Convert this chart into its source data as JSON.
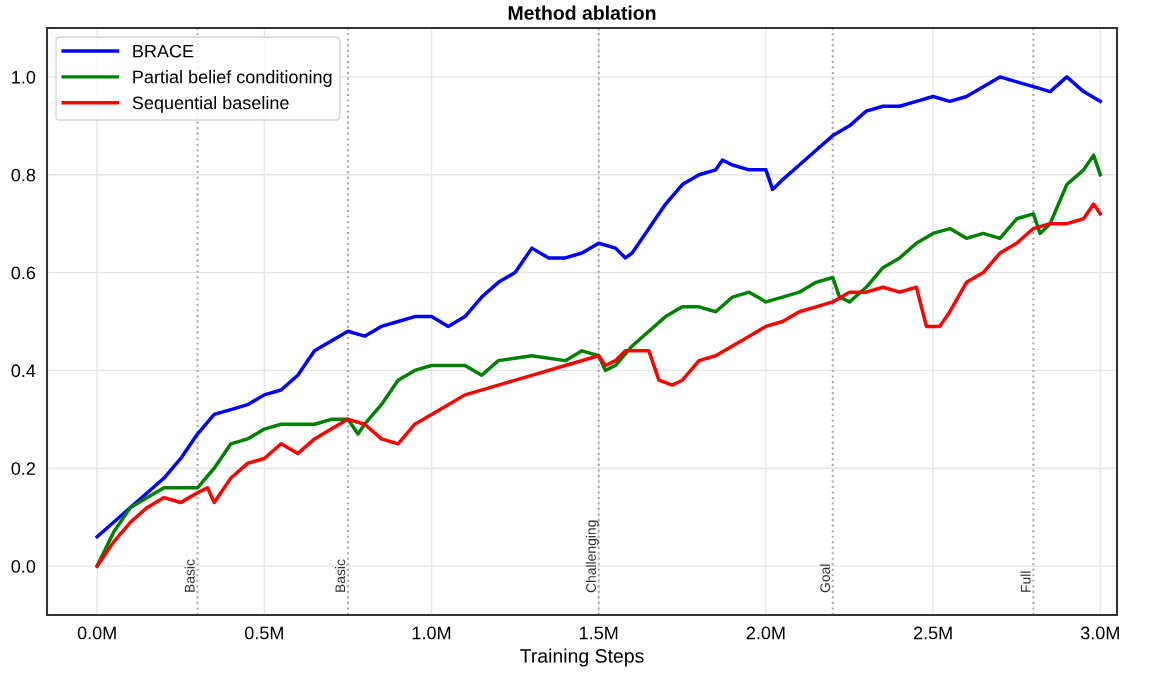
{
  "chart_data": {
    "type": "line",
    "title": "Method ablation",
    "xlabel": "Training Steps",
    "xlim": [
      -0.15,
      3.05
    ],
    "ylim": [
      -0.1,
      1.1
    ],
    "xticks": [
      {
        "value": 0,
        "label": "0.0M"
      },
      {
        "value": 0.5,
        "label": "0.5M"
      },
      {
        "value": 1,
        "label": "1.0M"
      },
      {
        "value": 1.5,
        "label": "1.5M"
      },
      {
        "value": 2,
        "label": "2.0M"
      },
      {
        "value": 2.5,
        "label": "2.5M"
      },
      {
        "value": 3,
        "label": "3.0M"
      }
    ],
    "yticks": [
      {
        "value": 0,
        "label": "0.0"
      },
      {
        "value": 0.2,
        "label": "0.2"
      },
      {
        "value": 0.4,
        "label": "0.4"
      },
      {
        "value": 0.6,
        "label": "0.6"
      },
      {
        "value": 0.8,
        "label": "0.8"
      },
      {
        "value": 1,
        "label": "1.0"
      }
    ],
    "grid": true,
    "legend": "top left",
    "marker": "none",
    "line_style": "solid",
    "series": [
      {
        "name": "BRACE",
        "color": "#0000ff",
        "x": [
          0,
          0.05,
          0.1,
          0.15,
          0.2,
          0.25,
          0.3,
          0.35,
          0.4,
          0.45,
          0.5,
          0.55,
          0.6,
          0.65,
          0.7,
          0.75,
          0.8,
          0.85,
          0.9,
          0.95,
          1.0,
          1.05,
          1.1,
          1.15,
          1.2,
          1.25,
          1.3,
          1.35,
          1.4,
          1.45,
          1.5,
          1.55,
          1.58,
          1.6,
          1.65,
          1.7,
          1.75,
          1.8,
          1.85,
          1.87,
          1.9,
          1.95,
          2.0,
          2.02,
          2.05,
          2.1,
          2.15,
          2.2,
          2.25,
          2.3,
          2.35,
          2.4,
          2.45,
          2.5,
          2.55,
          2.6,
          2.65,
          2.7,
          2.75,
          2.8,
          2.85,
          2.9,
          2.95,
          3.0
        ],
        "values": [
          0.06,
          0.09,
          0.12,
          0.15,
          0.18,
          0.22,
          0.27,
          0.31,
          0.32,
          0.33,
          0.35,
          0.36,
          0.39,
          0.44,
          0.46,
          0.48,
          0.47,
          0.49,
          0.5,
          0.51,
          0.51,
          0.49,
          0.51,
          0.55,
          0.58,
          0.6,
          0.65,
          0.63,
          0.63,
          0.64,
          0.66,
          0.65,
          0.63,
          0.64,
          0.69,
          0.74,
          0.78,
          0.8,
          0.81,
          0.83,
          0.82,
          0.81,
          0.81,
          0.77,
          0.79,
          0.82,
          0.85,
          0.88,
          0.9,
          0.93,
          0.94,
          0.94,
          0.95,
          0.96,
          0.95,
          0.96,
          0.98,
          1.0,
          0.99,
          0.98,
          0.97,
          1.0,
          0.97,
          0.95
        ]
      },
      {
        "name": "Partial belief conditioning",
        "color": "#008000",
        "x": [
          0,
          0.05,
          0.1,
          0.15,
          0.2,
          0.25,
          0.3,
          0.35,
          0.4,
          0.45,
          0.5,
          0.55,
          0.6,
          0.65,
          0.7,
          0.75,
          0.78,
          0.8,
          0.85,
          0.9,
          0.95,
          1.0,
          1.1,
          1.15,
          1.2,
          1.3,
          1.4,
          1.45,
          1.5,
          1.52,
          1.55,
          1.6,
          1.65,
          1.7,
          1.75,
          1.8,
          1.85,
          1.9,
          1.95,
          2.0,
          2.05,
          2.1,
          2.15,
          2.2,
          2.22,
          2.25,
          2.3,
          2.35,
          2.4,
          2.45,
          2.5,
          2.55,
          2.6,
          2.65,
          2.7,
          2.75,
          2.8,
          2.82,
          2.85,
          2.9,
          2.95,
          2.98,
          3.0
        ],
        "values": [
          0.0,
          0.07,
          0.12,
          0.14,
          0.16,
          0.16,
          0.16,
          0.2,
          0.25,
          0.26,
          0.28,
          0.29,
          0.29,
          0.29,
          0.3,
          0.3,
          0.27,
          0.29,
          0.33,
          0.38,
          0.4,
          0.41,
          0.41,
          0.39,
          0.42,
          0.43,
          0.42,
          0.44,
          0.43,
          0.4,
          0.41,
          0.45,
          0.48,
          0.51,
          0.53,
          0.53,
          0.52,
          0.55,
          0.56,
          0.54,
          0.55,
          0.56,
          0.58,
          0.59,
          0.55,
          0.54,
          0.57,
          0.61,
          0.63,
          0.66,
          0.68,
          0.69,
          0.67,
          0.68,
          0.67,
          0.71,
          0.72,
          0.68,
          0.7,
          0.78,
          0.81,
          0.84,
          0.8
        ]
      },
      {
        "name": "Sequential baseline",
        "color": "#ff0000",
        "x": [
          0,
          0.05,
          0.1,
          0.15,
          0.2,
          0.25,
          0.3,
          0.33,
          0.35,
          0.4,
          0.45,
          0.5,
          0.55,
          0.6,
          0.65,
          0.7,
          0.75,
          0.8,
          0.85,
          0.9,
          0.95,
          1.0,
          1.05,
          1.1,
          1.2,
          1.3,
          1.4,
          1.5,
          1.52,
          1.55,
          1.58,
          1.65,
          1.68,
          1.72,
          1.75,
          1.8,
          1.85,
          1.9,
          1.95,
          2.0,
          2.05,
          2.1,
          2.15,
          2.2,
          2.25,
          2.3,
          2.35,
          2.4,
          2.45,
          2.48,
          2.52,
          2.55,
          2.6,
          2.65,
          2.7,
          2.75,
          2.8,
          2.85,
          2.9,
          2.95,
          2.98,
          3.0
        ],
        "values": [
          0.0,
          0.05,
          0.09,
          0.12,
          0.14,
          0.13,
          0.15,
          0.16,
          0.13,
          0.18,
          0.21,
          0.22,
          0.25,
          0.23,
          0.26,
          0.28,
          0.3,
          0.29,
          0.26,
          0.25,
          0.29,
          0.31,
          0.33,
          0.35,
          0.37,
          0.39,
          0.41,
          0.43,
          0.41,
          0.42,
          0.44,
          0.44,
          0.38,
          0.37,
          0.38,
          0.42,
          0.43,
          0.45,
          0.47,
          0.49,
          0.5,
          0.52,
          0.53,
          0.54,
          0.56,
          0.56,
          0.57,
          0.56,
          0.57,
          0.49,
          0.49,
          0.52,
          0.58,
          0.6,
          0.64,
          0.66,
          0.69,
          0.7,
          0.7,
          0.71,
          0.74,
          0.72
        ]
      }
    ],
    "ref_lines": [
      {
        "axis": "x",
        "value": 0.3,
        "label": "Basic",
        "color": "#aaaaaa",
        "line_style": "dotted"
      },
      {
        "axis": "x",
        "value": 0.75,
        "label": "Basic",
        "color": "#aaaaaa",
        "line_style": "dotted"
      },
      {
        "axis": "x",
        "value": 1.5,
        "label": "Challenging",
        "color": "#aaaaaa",
        "line_style": "dotted"
      },
      {
        "axis": "x",
        "value": 2.2,
        "label": "Goal",
        "color": "#aaaaaa",
        "line_style": "dotted"
      },
      {
        "axis": "x",
        "value": 2.8,
        "label": "Full",
        "color": "#aaaaaa",
        "line_style": "dotted"
      }
    ]
  }
}
